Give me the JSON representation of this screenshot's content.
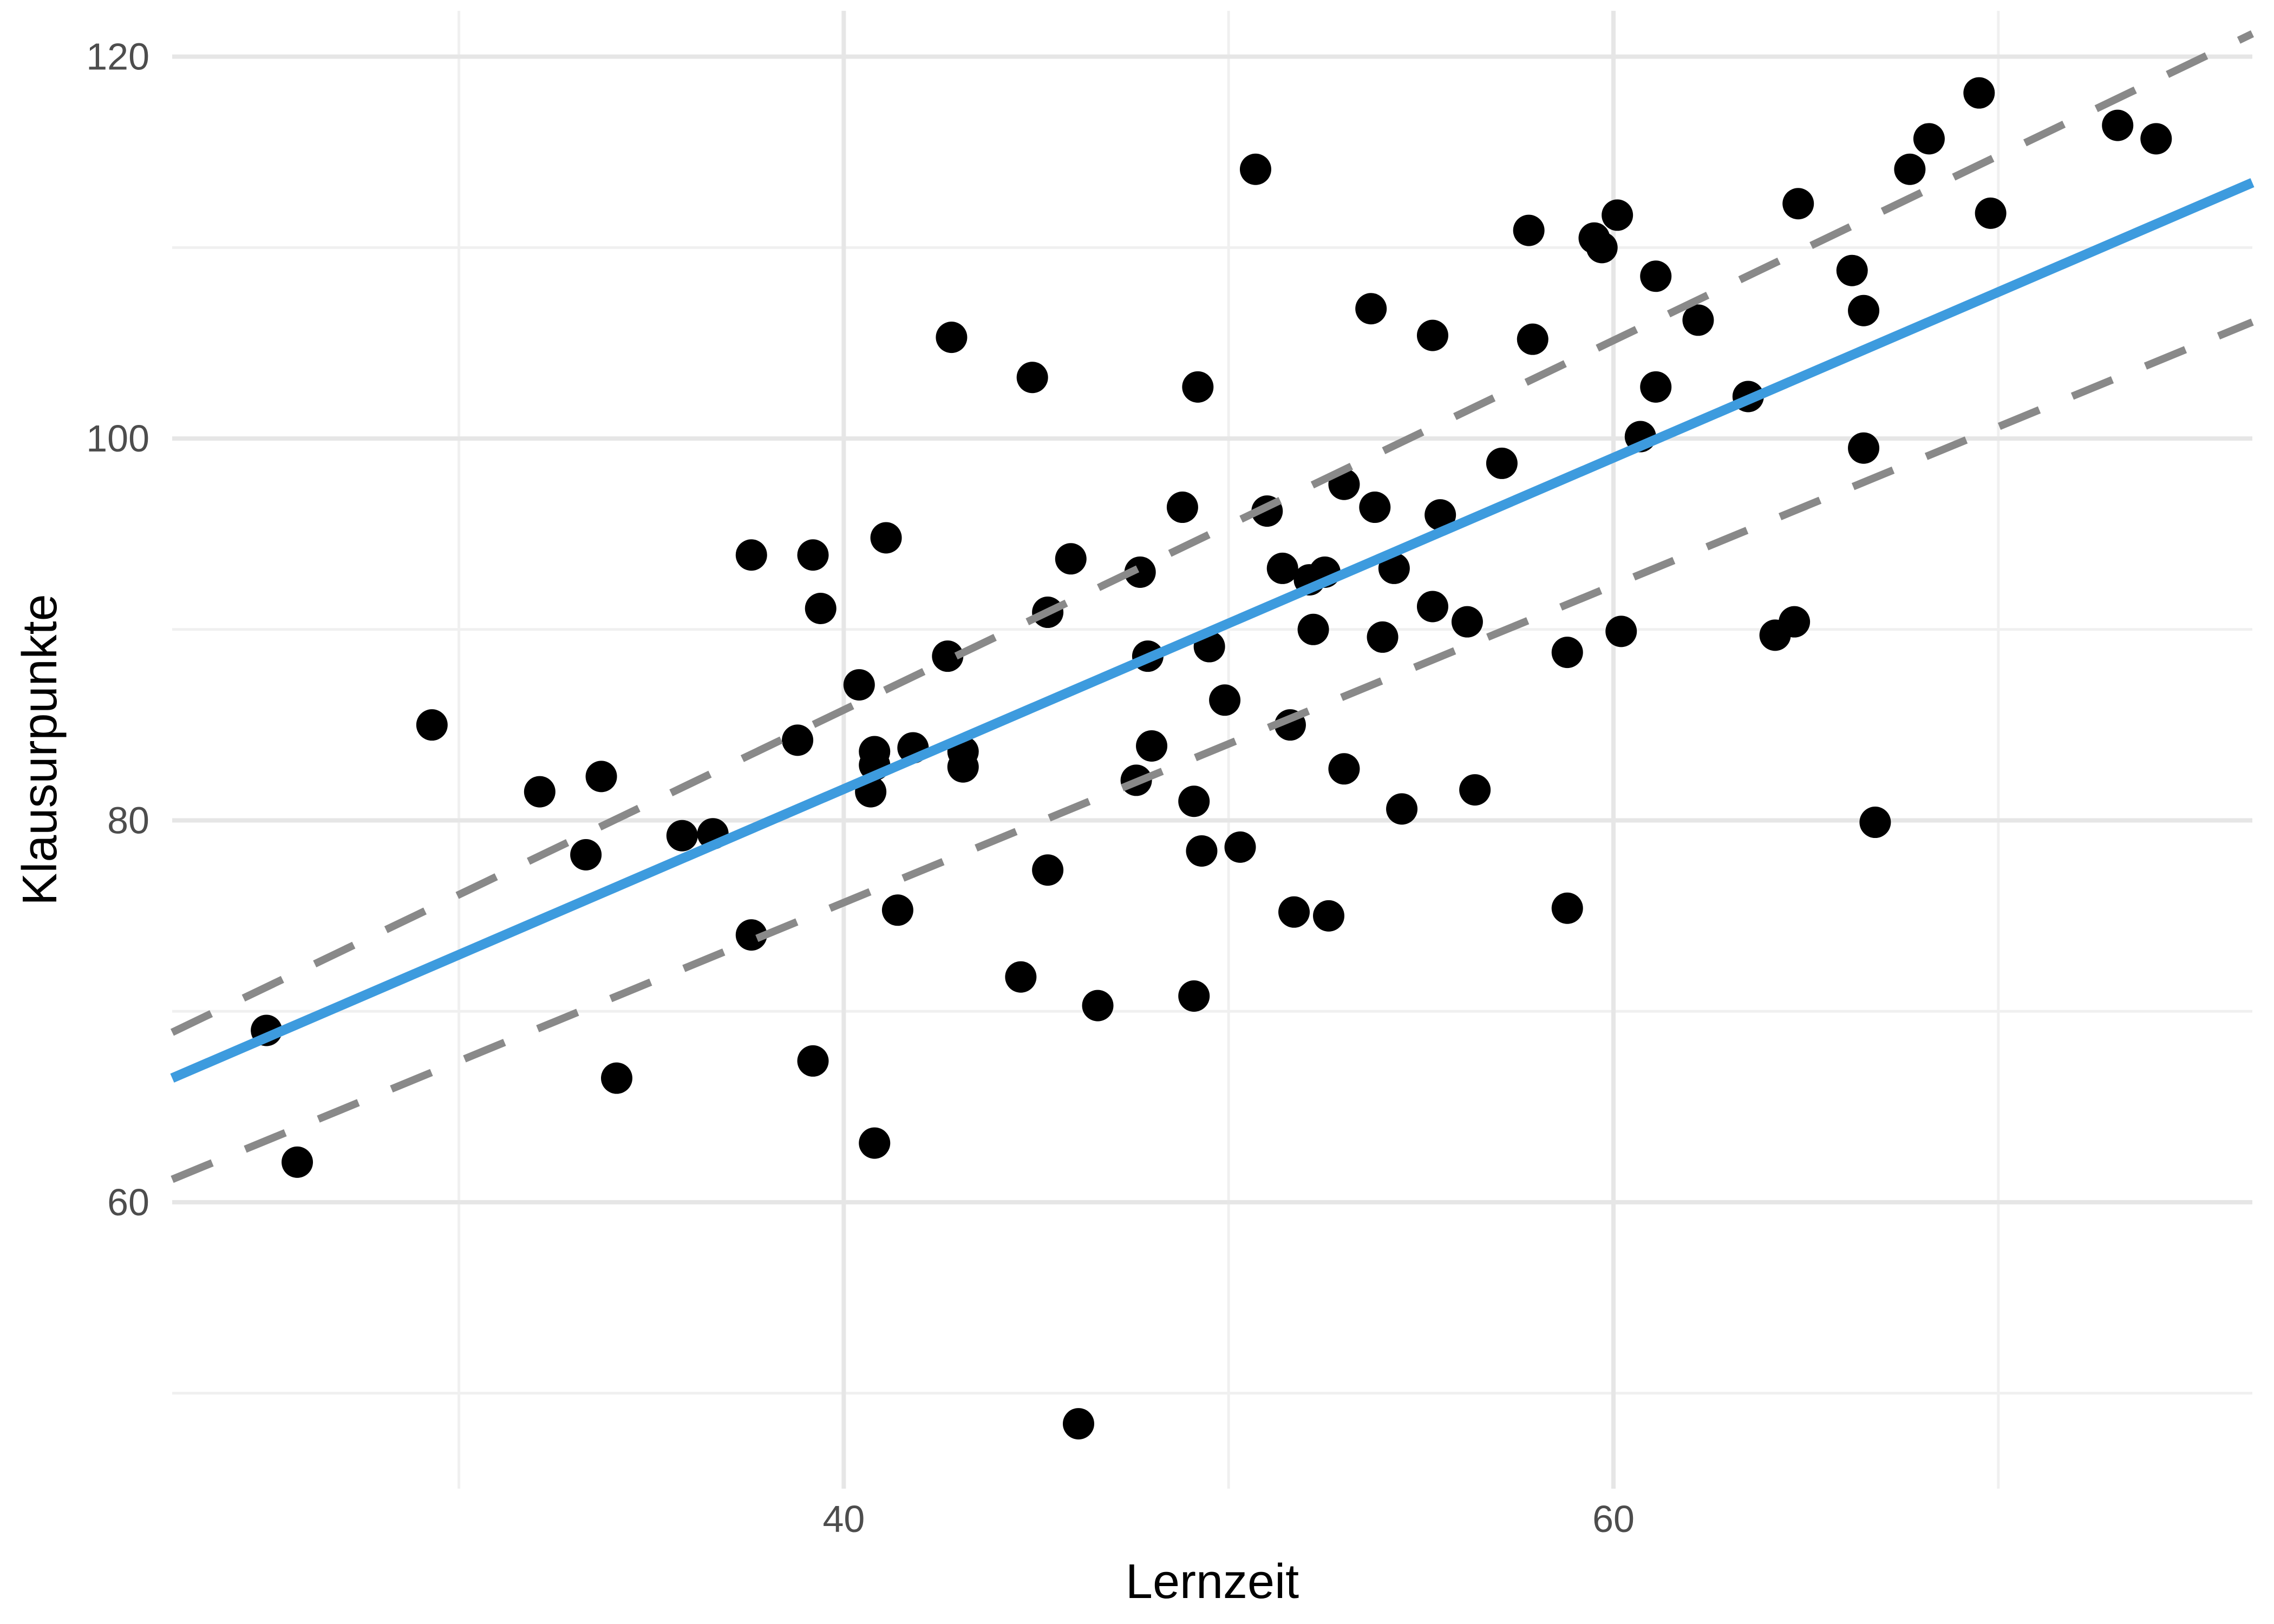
{
  "chart_data": {
    "type": "scatter",
    "title": "",
    "xlabel": "Lernzeit",
    "ylabel": "Klausurpunkte",
    "xlim": [
      22.55,
      76.6
    ],
    "ylim": [
      45.0,
      122.4
    ],
    "x_ticks": [
      40,
      60
    ],
    "y_ticks": [
      60,
      80,
      100,
      120
    ],
    "x_minor_ticks": [
      30,
      50,
      70
    ],
    "y_minor_ticks": [
      50,
      70,
      90,
      110
    ],
    "grid": "on",
    "legend": "none",
    "point_radius": 29,
    "colors": {
      "point": "#000000",
      "regression": "#3d9bde",
      "interval": "#898989",
      "grid_major": "#e6e6e6",
      "grid_minor": "#f0f0f0",
      "tick_text": "#4d4d4d",
      "title_text": "#000000",
      "background": "#ffffff"
    },
    "series": [
      {
        "name": "observations",
        "points": [
          [
            25.0,
            69.0
          ],
          [
            25.8,
            62.1
          ],
          [
            34.1,
            66.5
          ],
          [
            39.2,
            67.4
          ],
          [
            40.8,
            63.1
          ],
          [
            46.1,
            48.4
          ],
          [
            29.3,
            85.0
          ],
          [
            33.7,
            82.3
          ],
          [
            32.1,
            81.5
          ],
          [
            37.6,
            93.9
          ],
          [
            39.2,
            93.9
          ],
          [
            39.4,
            91.1
          ],
          [
            38.8,
            84.2
          ],
          [
            35.8,
            79.2
          ],
          [
            36.6,
            79.3
          ],
          [
            33.3,
            78.2
          ],
          [
            37.6,
            74.0
          ],
          [
            40.4,
            87.1
          ],
          [
            40.8,
            83.6
          ],
          [
            40.8,
            82.9
          ],
          [
            41.8,
            83.8
          ],
          [
            43.1,
            83.6
          ],
          [
            43.1,
            82.8
          ],
          [
            40.7,
            81.5
          ],
          [
            41.1,
            94.8
          ],
          [
            45.9,
            93.7
          ],
          [
            47.7,
            93.0
          ],
          [
            45.3,
            90.9
          ],
          [
            42.7,
            88.6
          ],
          [
            51.4,
            93.2
          ],
          [
            52.1,
            92.6
          ],
          [
            52.5,
            93.0
          ],
          [
            54.3,
            93.2
          ],
          [
            55.3,
            91.2
          ],
          [
            56.2,
            90.4
          ],
          [
            52.2,
            90.0
          ],
          [
            54.0,
            89.6
          ],
          [
            47.9,
            88.6
          ],
          [
            49.5,
            89.1
          ],
          [
            49.9,
            86.3
          ],
          [
            51.6,
            85.0
          ],
          [
            48.0,
            83.9
          ],
          [
            47.6,
            82.1
          ],
          [
            49.1,
            81.0
          ],
          [
            53.0,
            82.7
          ],
          [
            54.5,
            80.6
          ],
          [
            56.4,
            81.6
          ],
          [
            49.3,
            78.4
          ],
          [
            50.3,
            78.6
          ],
          [
            45.3,
            77.4
          ],
          [
            41.4,
            75.3
          ],
          [
            51.7,
            75.2
          ],
          [
            52.6,
            75.0
          ],
          [
            58.8,
            75.4
          ],
          [
            44.6,
            71.8
          ],
          [
            46.6,
            70.3
          ],
          [
            49.1,
            70.8
          ],
          [
            55.5,
            96.0
          ],
          [
            50.7,
            114.1
          ],
          [
            57.8,
            110.9
          ],
          [
            53.7,
            106.8
          ],
          [
            55.3,
            105.4
          ],
          [
            42.8,
            105.3
          ],
          [
            44.9,
            103.2
          ],
          [
            49.2,
            102.7
          ],
          [
            57.9,
            105.2
          ],
          [
            57.1,
            98.7
          ],
          [
            53.0,
            97.6
          ],
          [
            53.8,
            96.4
          ],
          [
            48.8,
            96.4
          ],
          [
            51.0,
            96.2
          ],
          [
            69.5,
            118.1
          ],
          [
            68.2,
            115.7
          ],
          [
            73.1,
            116.4
          ],
          [
            74.1,
            115.7
          ],
          [
            67.7,
            114.1
          ],
          [
            64.8,
            112.3
          ],
          [
            60.1,
            111.7
          ],
          [
            59.5,
            110.5
          ],
          [
            59.7,
            110.0
          ],
          [
            69.8,
            111.8
          ],
          [
            61.1,
            108.5
          ],
          [
            62.2,
            106.2
          ],
          [
            66.2,
            108.8
          ],
          [
            66.5,
            106.7
          ],
          [
            61.1,
            102.7
          ],
          [
            63.5,
            102.2
          ],
          [
            60.7,
            100.1
          ],
          [
            66.5,
            99.5
          ],
          [
            60.2,
            89.9
          ],
          [
            58.8,
            88.8
          ],
          [
            64.2,
            89.7
          ],
          [
            64.7,
            90.4
          ],
          [
            66.8,
            79.9
          ]
        ]
      }
    ],
    "lines": [
      {
        "name": "interval-lower",
        "style": "dashed",
        "color": "#898989",
        "slope": 0.83,
        "intercept": 42.5,
        "x1": 22.55,
        "y1": 61.2,
        "x2": 76.6,
        "y2": 106.1
      },
      {
        "name": "interval-upper",
        "style": "dashed",
        "color": "#898989",
        "slope": 0.969,
        "intercept": 47.0,
        "x1": 22.55,
        "y1": 68.9,
        "x2": 76.6,
        "y2": 121.2
      },
      {
        "name": "regression-line",
        "style": "solid",
        "color": "#3d9bde",
        "slope": 0.868,
        "intercept": 46.9,
        "x1": 22.55,
        "y1": 66.5,
        "x2": 76.6,
        "y2": 113.4
      }
    ]
  }
}
